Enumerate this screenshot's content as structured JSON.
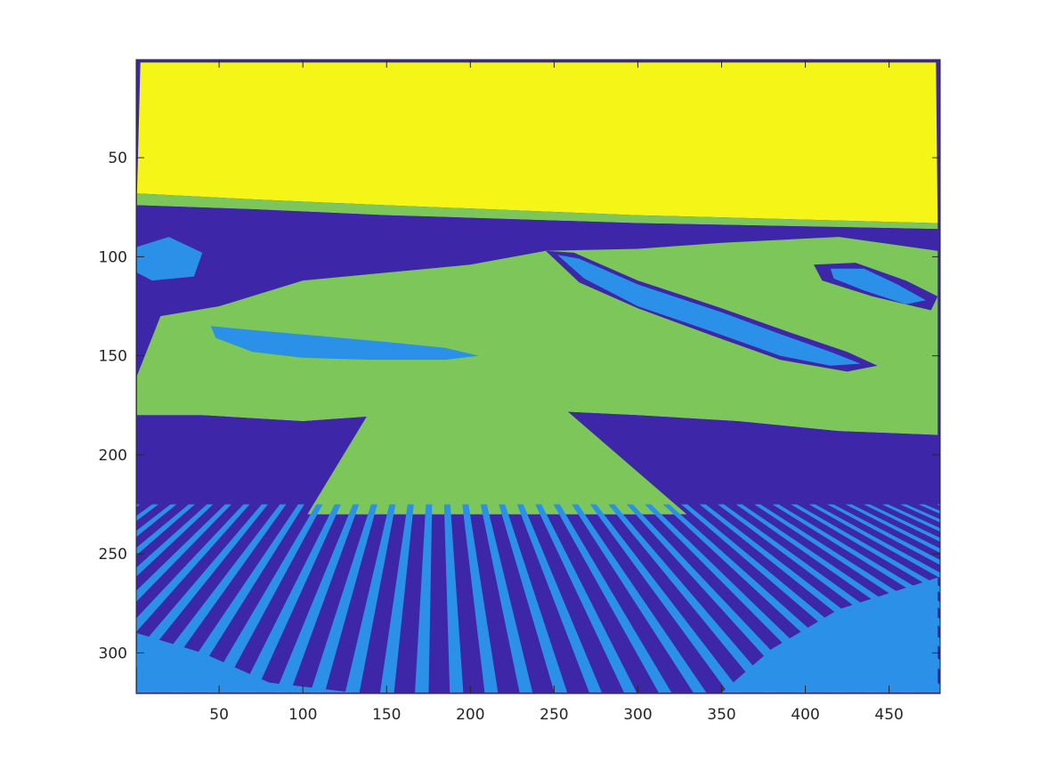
{
  "chart_data": {
    "type": "heatmap",
    "title": "",
    "xlabel": "",
    "ylabel": "",
    "xlim": [
      0.5,
      480.5
    ],
    "ylim": [
      0.5,
      320.5
    ],
    "y_reversed": true,
    "grid": false,
    "legend": "none",
    "colormap": "parula (4 levels)",
    "levels": [
      {
        "value": 1,
        "color": "#3e26a8"
      },
      {
        "value": 2,
        "color": "#2b90e8"
      },
      {
        "value": 3,
        "color": "#7cc65a"
      },
      {
        "value": 4,
        "color": "#f5f518"
      }
    ],
    "x_ticks": [
      {
        "value": 50,
        "label": "50"
      },
      {
        "value": 100,
        "label": "100"
      },
      {
        "value": 150,
        "label": "150"
      },
      {
        "value": 200,
        "label": "200"
      },
      {
        "value": 250,
        "label": "250"
      },
      {
        "value": 300,
        "label": "300"
      },
      {
        "value": 350,
        "label": "350"
      },
      {
        "value": 400,
        "label": "400"
      },
      {
        "value": 450,
        "label": "450"
      }
    ],
    "y_ticks": [
      {
        "value": 50,
        "label": "50"
      },
      {
        "value": 100,
        "label": "100"
      },
      {
        "value": 150,
        "label": "150"
      },
      {
        "value": 200,
        "label": "200"
      },
      {
        "value": 250,
        "label": "250"
      },
      {
        "value": 300,
        "label": "300"
      }
    ],
    "regions": [
      {
        "name": "sky",
        "value": 4,
        "points": [
          [
            3,
            2
          ],
          [
            478,
            2
          ],
          [
            479,
            83
          ],
          [
            300,
            79
          ],
          [
            150,
            74
          ],
          [
            70,
            71
          ],
          [
            1,
            68
          ]
        ]
      },
      {
        "name": "horizon-band",
        "value": 3,
        "points": [
          [
            1,
            68
          ],
          [
            70,
            71
          ],
          [
            150,
            74
          ],
          [
            300,
            79
          ],
          [
            479,
            83
          ],
          [
            479,
            86
          ],
          [
            300,
            83
          ],
          [
            150,
            79
          ],
          [
            70,
            76
          ],
          [
            1,
            74
          ]
        ]
      },
      {
        "name": "dark-shoreline",
        "value": 1,
        "points": [
          [
            1,
            74
          ],
          [
            70,
            76
          ],
          [
            150,
            79
          ],
          [
            300,
            83
          ],
          [
            479,
            86
          ],
          [
            479,
            100
          ],
          [
            300,
            94
          ],
          [
            150,
            90
          ],
          [
            70,
            90
          ],
          [
            1,
            88
          ]
        ]
      },
      {
        "name": "left-inlet",
        "value": 2,
        "points": [
          [
            1,
            95
          ],
          [
            20,
            90
          ],
          [
            40,
            98
          ],
          [
            35,
            110
          ],
          [
            10,
            112
          ],
          [
            1,
            108
          ]
        ]
      },
      {
        "name": "green-ground",
        "value": 3,
        "points": [
          [
            1,
            160
          ],
          [
            15,
            130
          ],
          [
            50,
            125
          ],
          [
            100,
            112
          ],
          [
            200,
            104
          ],
          [
            245,
            97
          ],
          [
            300,
            96
          ],
          [
            350,
            93
          ],
          [
            420,
            90
          ],
          [
            479,
            97
          ],
          [
            479,
            190
          ],
          [
            420,
            188
          ],
          [
            360,
            183
          ],
          [
            300,
            180
          ],
          [
            250,
            178
          ],
          [
            200,
            177
          ],
          [
            150,
            180
          ],
          [
            100,
            183
          ],
          [
            40,
            180
          ],
          [
            1,
            180
          ]
        ]
      },
      {
        "name": "left-lagoon",
        "value": 2,
        "points": [
          [
            45,
            135
          ],
          [
            70,
            137
          ],
          [
            110,
            140
          ],
          [
            150,
            143
          ],
          [
            185,
            146
          ],
          [
            205,
            150
          ],
          [
            185,
            152
          ],
          [
            140,
            152
          ],
          [
            100,
            151
          ],
          [
            70,
            148
          ],
          [
            48,
            141
          ]
        ]
      },
      {
        "name": "right-channel-edge",
        "value": 1,
        "points": [
          [
            245,
            97
          ],
          [
            262,
            98
          ],
          [
            300,
            112
          ],
          [
            350,
            126
          ],
          [
            390,
            138
          ],
          [
            425,
            148
          ],
          [
            443,
            155
          ],
          [
            425,
            158
          ],
          [
            385,
            152
          ],
          [
            345,
            140
          ],
          [
            300,
            126
          ],
          [
            265,
            113
          ]
        ]
      },
      {
        "name": "right-channel",
        "value": 2,
        "points": [
          [
            252,
            99
          ],
          [
            265,
            101
          ],
          [
            300,
            114
          ],
          [
            350,
            128
          ],
          [
            385,
            139
          ],
          [
            415,
            148
          ],
          [
            433,
            154
          ],
          [
            415,
            155
          ],
          [
            385,
            150
          ],
          [
            345,
            138
          ],
          [
            300,
            125
          ],
          [
            268,
            111
          ]
        ]
      },
      {
        "name": "right-pond-edge",
        "value": 1,
        "points": [
          [
            405,
            104
          ],
          [
            430,
            103
          ],
          [
            460,
            112
          ],
          [
            479,
            120
          ],
          [
            475,
            127
          ],
          [
            440,
            120
          ],
          [
            410,
            112
          ]
        ]
      },
      {
        "name": "right-pond",
        "value": 2,
        "points": [
          [
            415,
            106
          ],
          [
            435,
            106
          ],
          [
            455,
            114
          ],
          [
            472,
            122
          ],
          [
            460,
            124
          ],
          [
            435,
            117
          ],
          [
            417,
            111
          ]
        ]
      },
      {
        "name": "dark-foreground",
        "value": 1,
        "points": [
          [
            1,
            180
          ],
          [
            40,
            180
          ],
          [
            100,
            183
          ],
          [
            150,
            180
          ],
          [
            200,
            177
          ],
          [
            250,
            178
          ],
          [
            300,
            180
          ],
          [
            360,
            183
          ],
          [
            420,
            188
          ],
          [
            479,
            190
          ],
          [
            479,
            262
          ],
          [
            420,
            278
          ],
          [
            380,
            298
          ],
          [
            350,
            320
          ],
          [
            130,
            320
          ],
          [
            80,
            315
          ],
          [
            1,
            290
          ]
        ]
      },
      {
        "name": "shallow-right",
        "value": 2,
        "points": [
          [
            380,
            298
          ],
          [
            420,
            278
          ],
          [
            479,
            262
          ],
          [
            479,
            320
          ],
          [
            350,
            320
          ]
        ]
      },
      {
        "name": "shallow-left",
        "value": 2,
        "points": [
          [
            1,
            290
          ],
          [
            40,
            300
          ],
          [
            80,
            315
          ],
          [
            130,
            320
          ],
          [
            1,
            320
          ]
        ]
      }
    ],
    "stripes": {
      "fan_center": [
        180,
        120
      ],
      "green_band": [
        175,
        230
      ],
      "blue_band": [
        225,
        320
      ],
      "count": 48
    }
  }
}
